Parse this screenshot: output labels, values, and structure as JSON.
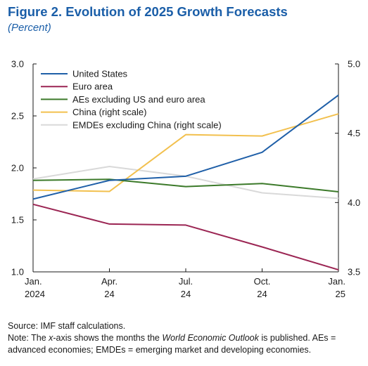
{
  "figure": {
    "title": "Figure 2.  Evolution of 2025 Growth Forecasts",
    "subtitle": "(Percent)",
    "source": "Source: IMF staff calculations.",
    "note_prefix": "Note: The ",
    "note_x": "x",
    "note_mid": "-axis shows the months the ",
    "note_weo": "World Economic Outlook",
    "note_suffix": " is published. AEs = advanced economies; EMDEs = emerging market and developing economies."
  },
  "chart_data": {
    "type": "line",
    "categories": [
      [
        "Jan.",
        "2024"
      ],
      [
        "Apr.",
        "24"
      ],
      [
        "Jul.",
        "24"
      ],
      [
        "Oct.",
        "24"
      ],
      [
        "Jan.",
        "25"
      ]
    ],
    "y_left": {
      "range": [
        1.0,
        3.0
      ],
      "ticks": [
        "1.0",
        "1.5",
        "2.0",
        "2.5",
        "3.0"
      ]
    },
    "y_right": {
      "range": [
        3.5,
        5.0
      ],
      "ticks": [
        "3.5",
        "4.0",
        "4.5",
        "5.0"
      ]
    },
    "grid": false,
    "legend_position": "top-left",
    "series": [
      {
        "name": "United States",
        "axis": "left",
        "color": "#1f5fa8",
        "values": [
          1.7,
          1.88,
          1.92,
          2.15,
          2.7
        ]
      },
      {
        "name": "Euro area",
        "axis": "left",
        "color": "#9b2553",
        "values": [
          1.65,
          1.46,
          1.45,
          1.24,
          1.02
        ]
      },
      {
        "name": "AEs excluding US and euro area",
        "axis": "left",
        "color": "#3c7a2a",
        "values": [
          1.88,
          1.89,
          1.82,
          1.85,
          1.77
        ]
      },
      {
        "name": "China (right scale)",
        "axis": "right",
        "color": "#f2c04e",
        "values": [
          4.09,
          4.08,
          4.49,
          4.48,
          4.64
        ]
      },
      {
        "name": "EMDEs excluding China (right scale)",
        "axis": "right",
        "color": "#d9d9d9",
        "values": [
          4.17,
          4.26,
          4.19,
          4.07,
          4.03
        ]
      }
    ]
  }
}
